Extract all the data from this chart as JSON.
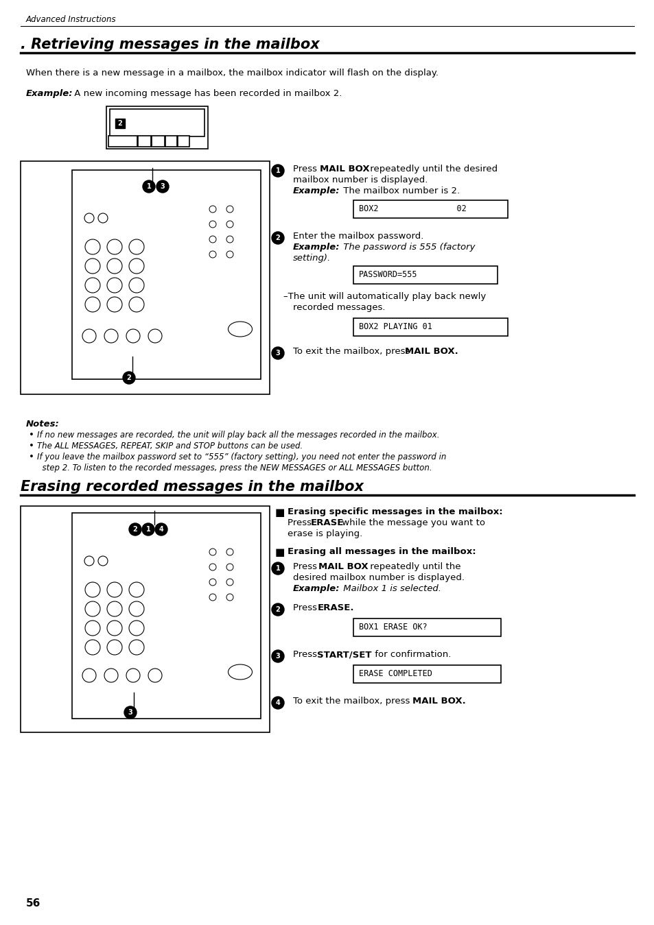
{
  "page_header": "Advanced Instructions",
  "section1_title": ". Retrieving messages in the mailbox",
  "section1_body": "When there is a new message in a mailbox, the mailbox indicator will flash on the display.",
  "section1_example_prefix": "Example:",
  "section1_example_text": " A new incoming message has been recorded in mailbox 2.",
  "display1_text": "BOX2                02",
  "display2_text": "PASSWORD=555",
  "display3_text": "BOX2 PLAYING 01",
  "display4_text": "BOX1 ERASE OK?",
  "display5_text": "ERASE COMPLETED",
  "notes_header": "Notes:",
  "note1": "If no new messages are recorded, the unit will play back all the messages recorded in the mailbox.",
  "note2": "The ALL MESSAGES, REPEAT, SKIP and STOP buttons can be used.",
  "note3a": "If you leave the mailbox password set to “555” (factory setting), you need not enter the password in",
  "note3b": "  step 2. To listen to the recorded messages, press the NEW MESSAGES or ALL MESSAGES button.",
  "section2_title": "Erasing recorded messages in the mailbox",
  "page_number": "56",
  "bg_color": "#ffffff"
}
